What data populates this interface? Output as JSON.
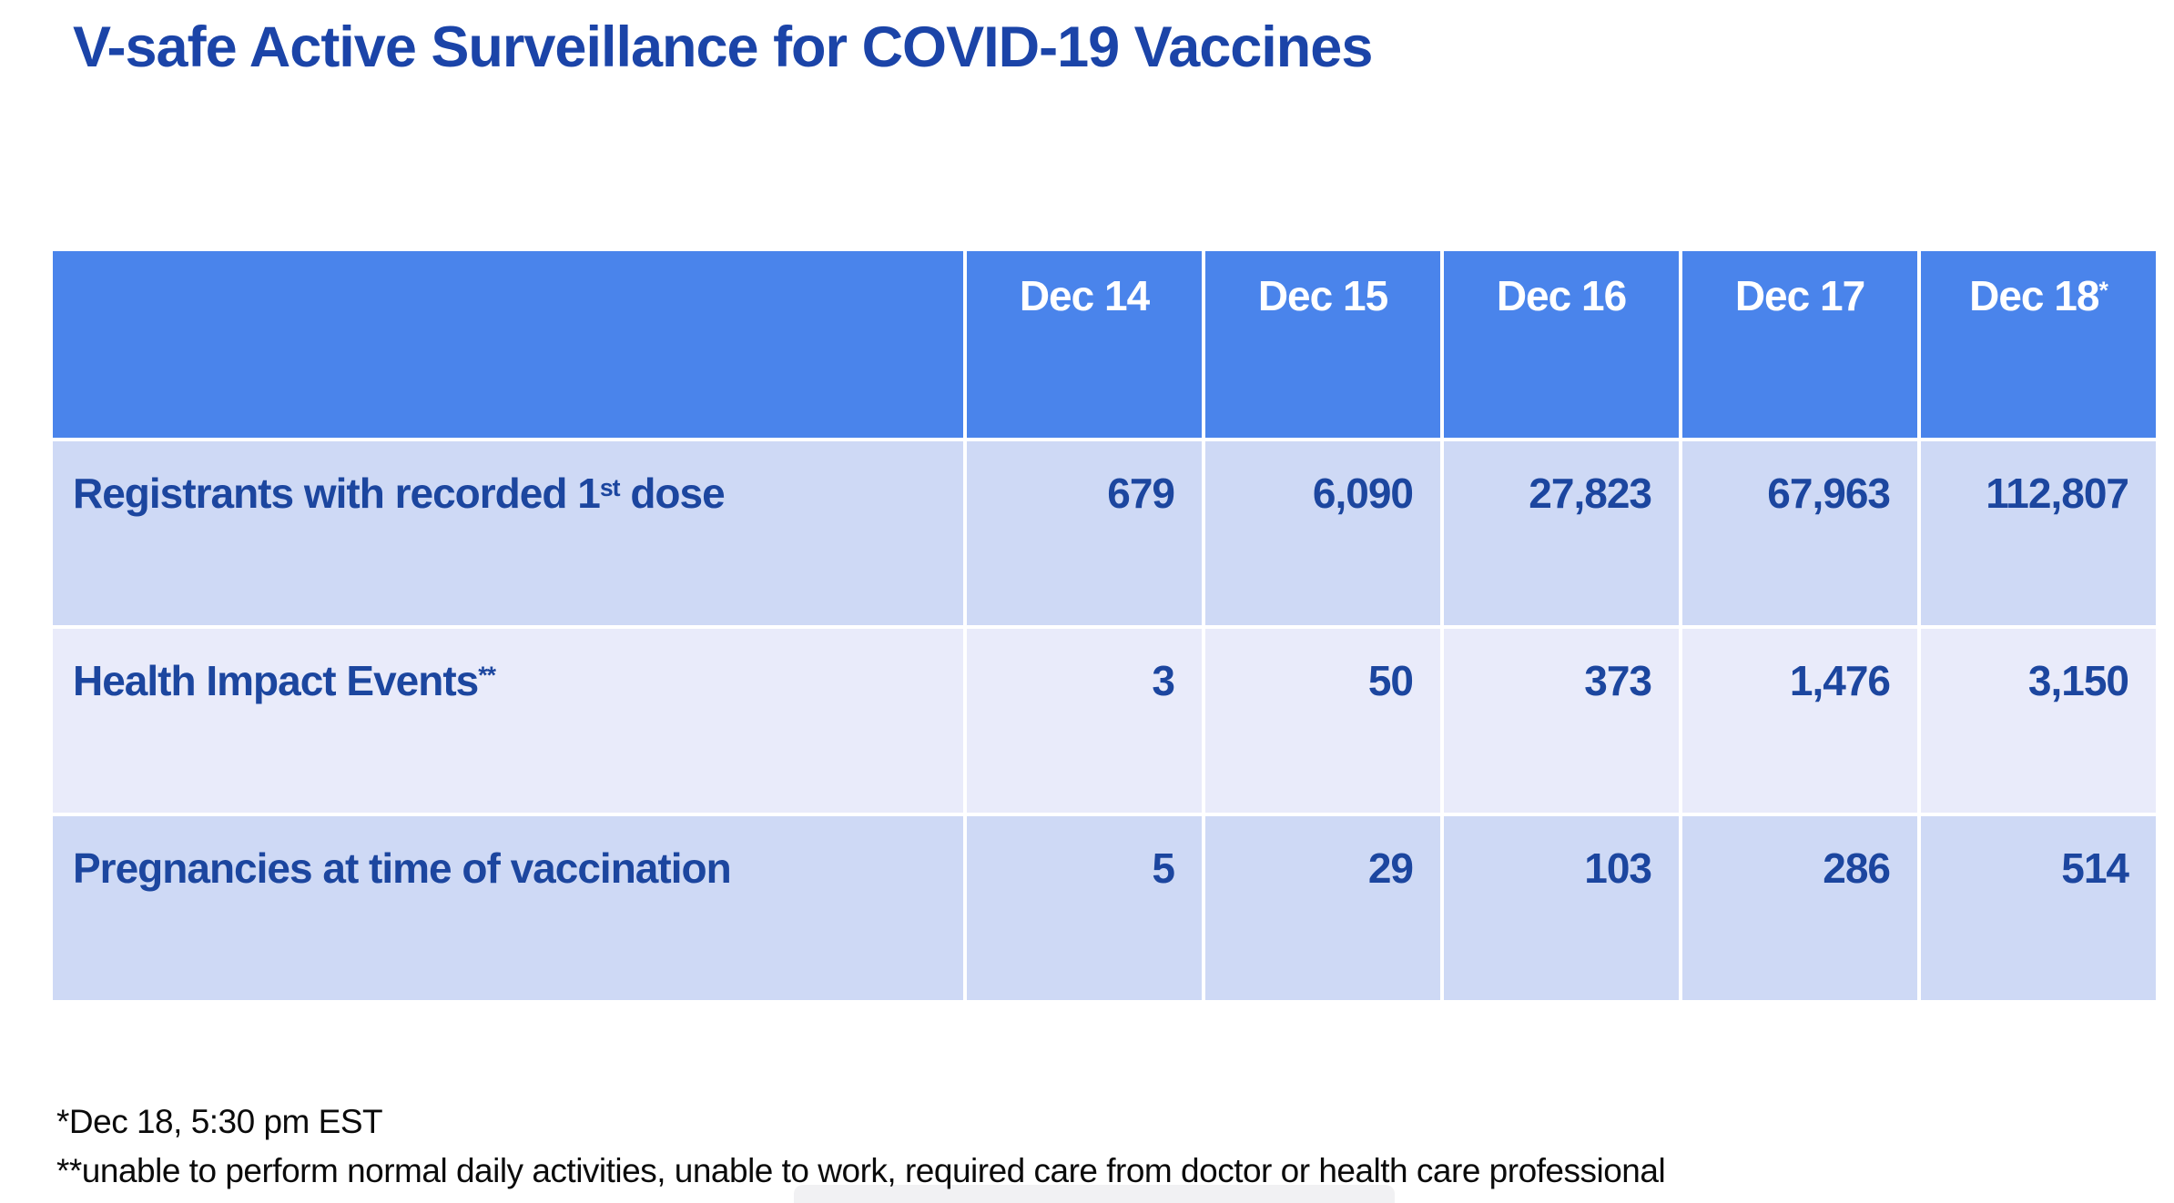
{
  "title": "V-safe Active Surveillance for COVID-19 Vaccines",
  "table": {
    "columns": [
      {
        "label": "Dec 14",
        "sup": ""
      },
      {
        "label": "Dec 15",
        "sup": ""
      },
      {
        "label": "Dec 16",
        "sup": ""
      },
      {
        "label": "Dec 17",
        "sup": ""
      },
      {
        "label": "Dec 18",
        "sup": "*"
      }
    ],
    "rows": [
      {
        "label_pre": "Registrants with recorded 1",
        "label_sup": "st",
        "label_post": " dose",
        "values": [
          "679",
          "6,090",
          "27,823",
          "67,963",
          "112,807"
        ]
      },
      {
        "label_pre": "Health Impact Events",
        "label_sup": "**",
        "label_post": "",
        "values": [
          "3",
          "50",
          "373",
          "1,476",
          "3,150"
        ]
      },
      {
        "label_pre": "Pregnancies at time of vaccination",
        "label_sup": "",
        "label_post": "",
        "values": [
          "5",
          "29",
          "103",
          "286",
          "514"
        ]
      }
    ]
  },
  "footnotes": [
    "*Dec 18, 5:30 pm EST",
    "**unable to perform normal daily activities, unable to work, required care from doctor or health care professional"
  ],
  "colors": {
    "title_blue": "#1B44A8",
    "header_bg": "#4A84EB",
    "row_odd_bg": "#CED9F5",
    "row_even_bg": "#E9EBFA",
    "cell_text": "#1C469F",
    "footnote_text": "#0B0B0B"
  }
}
